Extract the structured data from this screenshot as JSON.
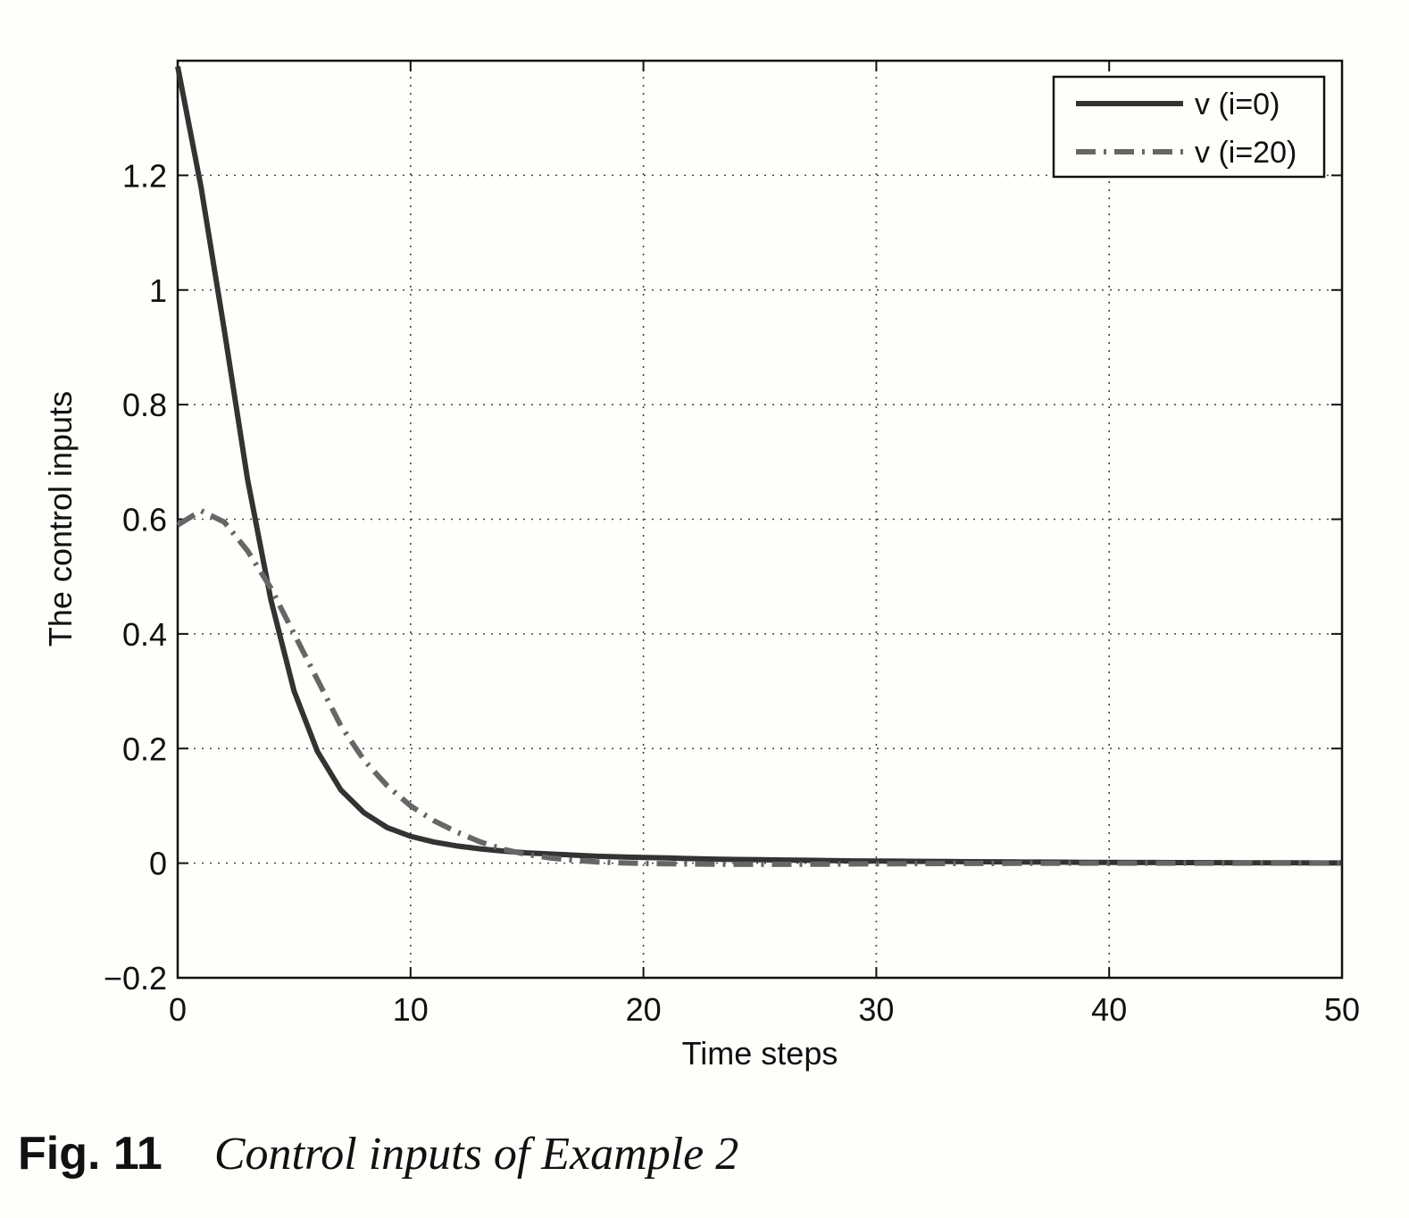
{
  "chart_data": {
    "type": "line",
    "xlabel": "Time steps",
    "ylabel": "The control inputs",
    "xlim": [
      0,
      50
    ],
    "ylim": [
      -0.2,
      1.4
    ],
    "xticks": [
      0,
      10,
      20,
      30,
      40,
      50
    ],
    "yticks": [
      -0.2,
      0,
      0.2,
      0.4,
      0.6,
      0.8,
      1,
      1.2
    ],
    "ytick_labels": [
      "−0.2",
      "0",
      "0.2",
      "0.4",
      "0.6",
      "0.8",
      "1",
      "1.2"
    ],
    "grid": true,
    "legend_position": "top-right",
    "x": [
      0,
      1,
      2,
      3,
      4,
      5,
      6,
      7,
      8,
      9,
      10,
      11,
      12,
      13,
      14,
      15,
      16,
      17,
      18,
      19,
      20,
      21,
      22,
      23,
      24,
      25,
      26,
      27,
      28,
      29,
      30,
      31,
      32,
      33,
      34,
      35,
      36,
      37,
      38,
      39,
      40,
      41,
      42,
      43,
      44,
      45,
      46,
      47,
      48,
      49,
      50
    ],
    "series": [
      {
        "name": "v (i=0)",
        "color": "#333333",
        "style": "solid",
        "values": [
          1.39,
          1.18,
          0.93,
          0.67,
          0.46,
          0.3,
          0.195,
          0.128,
          0.088,
          0.062,
          0.047,
          0.037,
          0.03,
          0.025,
          0.021,
          0.018,
          0.016,
          0.014,
          0.012,
          0.011,
          0.01,
          0.009,
          0.008,
          0.007,
          0.0065,
          0.006,
          0.0055,
          0.005,
          0.0045,
          0.004,
          0.0037,
          0.0034,
          0.0031,
          0.0028,
          0.0025,
          0.0023,
          0.0021,
          0.0019,
          0.0017,
          0.0015,
          0.0013,
          0.0012,
          0.0011,
          0.001,
          0.0009,
          0.0008,
          0.0007,
          0.0006,
          0.0005,
          0.0004,
          0.0003
        ]
      },
      {
        "name": "v (i=20)",
        "color": "#666666",
        "style": "dashdot",
        "values": [
          0.59,
          0.615,
          0.595,
          0.545,
          0.48,
          0.4,
          0.32,
          0.24,
          0.18,
          0.135,
          0.1,
          0.074,
          0.054,
          0.037,
          0.024,
          0.015,
          0.009,
          0.005,
          0.002,
          0.0005,
          -0.0005,
          -0.001,
          -0.0015,
          -0.0018,
          -0.002,
          -0.002,
          -0.002,
          -0.0018,
          -0.0016,
          -0.0014,
          -0.0012,
          -0.001,
          -0.0008,
          -0.0006,
          -0.0005,
          -0.0004,
          -0.0003,
          -0.0002,
          -0.0001,
          0,
          0,
          0,
          0,
          0,
          0,
          0,
          0,
          0,
          0,
          0,
          0
        ]
      }
    ]
  },
  "caption": {
    "fig_label": "Fig. 11",
    "text": "Control inputs of Example 2"
  }
}
